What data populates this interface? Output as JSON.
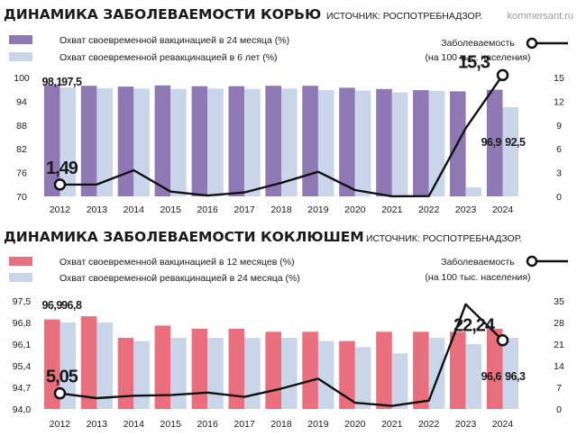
{
  "colors": {
    "measles_primary": "#8f79b4",
    "measles_revacc": "#c9d6ea",
    "pertussis_primary": "#e86f7b",
    "pertussis_revacc": "#c9d6ea",
    "incidence_line": "#111111",
    "text": "#1a1a1a",
    "watermark": "#9a9a9a"
  },
  "watermark": "kommersant.ru",
  "chart_data": [
    {
      "type": "bar",
      "title": "ДИНАМИКА ЗАБОЛЕВАЕМОСТИ КОРЬЮ",
      "source": "ИСТОЧНИК: РОСПОТРЕБНАДЗОР.",
      "categories": [
        "2012",
        "2013",
        "2014",
        "2015",
        "2016",
        "2017",
        "2018",
        "2019",
        "2020",
        "2021",
        "2022",
        "2023",
        "2024"
      ],
      "series": [
        {
          "name": "Охват своевременной вакцинацией в 24 месяца (%)",
          "values": [
            98.1,
            97.9,
            97.7,
            98.0,
            97.8,
            97.8,
            97.9,
            97.9,
            97.4,
            97.1,
            96.8,
            96.5,
            96.9
          ]
        },
        {
          "name": "Охват своевременной ревакцинацией в 6 лет (%)",
          "values": [
            97.5,
            97.3,
            97.2,
            97.1,
            97.2,
            97.1,
            97.2,
            96.8,
            96.7,
            96.2,
            96.6,
            72.3,
            92.5
          ]
        }
      ],
      "left_axis": {
        "ticks": [
          "100",
          "94",
          "88",
          "82",
          "76",
          "70"
        ],
        "ylim": [
          70,
          100
        ]
      },
      "line": {
        "name": "Заболеваемость",
        "name_sub": "(на 100 тыс. населения)",
        "values": [
          1.49,
          1.5,
          3.3,
          0.6,
          0.1,
          0.5,
          1.7,
          3.1,
          0.8,
          0.01,
          0.03,
          8.6,
          15.3
        ],
        "right_axis": {
          "ticks": [
            "15",
            "12",
            "9",
            "6",
            "3",
            "0"
          ],
          "ylim": [
            0,
            15
          ]
        }
      },
      "data_labels": {
        "bar_2012_primary": "98,1",
        "bar_2012_revacc": "97,5",
        "bar_2024_primary": "96,9",
        "bar_2024_revacc": "92,5",
        "line_first": "1,49",
        "line_last": "15,3"
      }
    },
    {
      "type": "bar",
      "title": "ДИНАМИКА ЗАБОЛЕВАЕМОСТИ КОКЛЮШЕМ",
      "source": "ИСТОЧНИК: РОСПОТРЕБНАДЗОР.",
      "categories": [
        "2012",
        "2013",
        "2014",
        "2015",
        "2016",
        "2017",
        "2018",
        "2019",
        "2020",
        "2021",
        "2022",
        "2023",
        "2024"
      ],
      "series": [
        {
          "name": "Охват своевременной вакцинацией в 12 месяцев (%)",
          "values": [
            96.9,
            97.0,
            96.3,
            96.7,
            96.6,
            96.6,
            96.5,
            96.5,
            96.2,
            96.5,
            96.5,
            96.5,
            96.6
          ]
        },
        {
          "name": "Охват своевременной ревакцинацией в 24 месяца (%)",
          "values": [
            96.8,
            96.8,
            96.2,
            96.3,
            96.3,
            96.3,
            96.3,
            96.2,
            96.0,
            95.8,
            96.3,
            96.1,
            96.3
          ]
        }
      ],
      "left_axis": {
        "ticks": [
          "97,5",
          "96,8",
          "96,1",
          "95,4",
          "94,7",
          "94,0"
        ],
        "ylim": [
          94.0,
          97.5
        ]
      },
      "line": {
        "name": "Заболеваемость",
        "name_sub": "(на 100 тыс. населения)",
        "values": [
          5.05,
          3.5,
          4.3,
          4.5,
          5.3,
          3.9,
          6.6,
          9.8,
          2.0,
          1.0,
          2.7,
          33.9,
          22.24
        ],
        "right_axis": {
          "ticks": [
            "35",
            "28",
            "21",
            "14",
            "7",
            "0"
          ],
          "ylim": [
            0,
            35
          ]
        }
      },
      "data_labels": {
        "bar_2012_primary": "96,9",
        "bar_2012_revacc": "96,8",
        "bar_2024_primary": "96,6",
        "bar_2024_revacc": "96,3",
        "line_first": "5,05",
        "line_last": "22,24"
      }
    }
  ]
}
